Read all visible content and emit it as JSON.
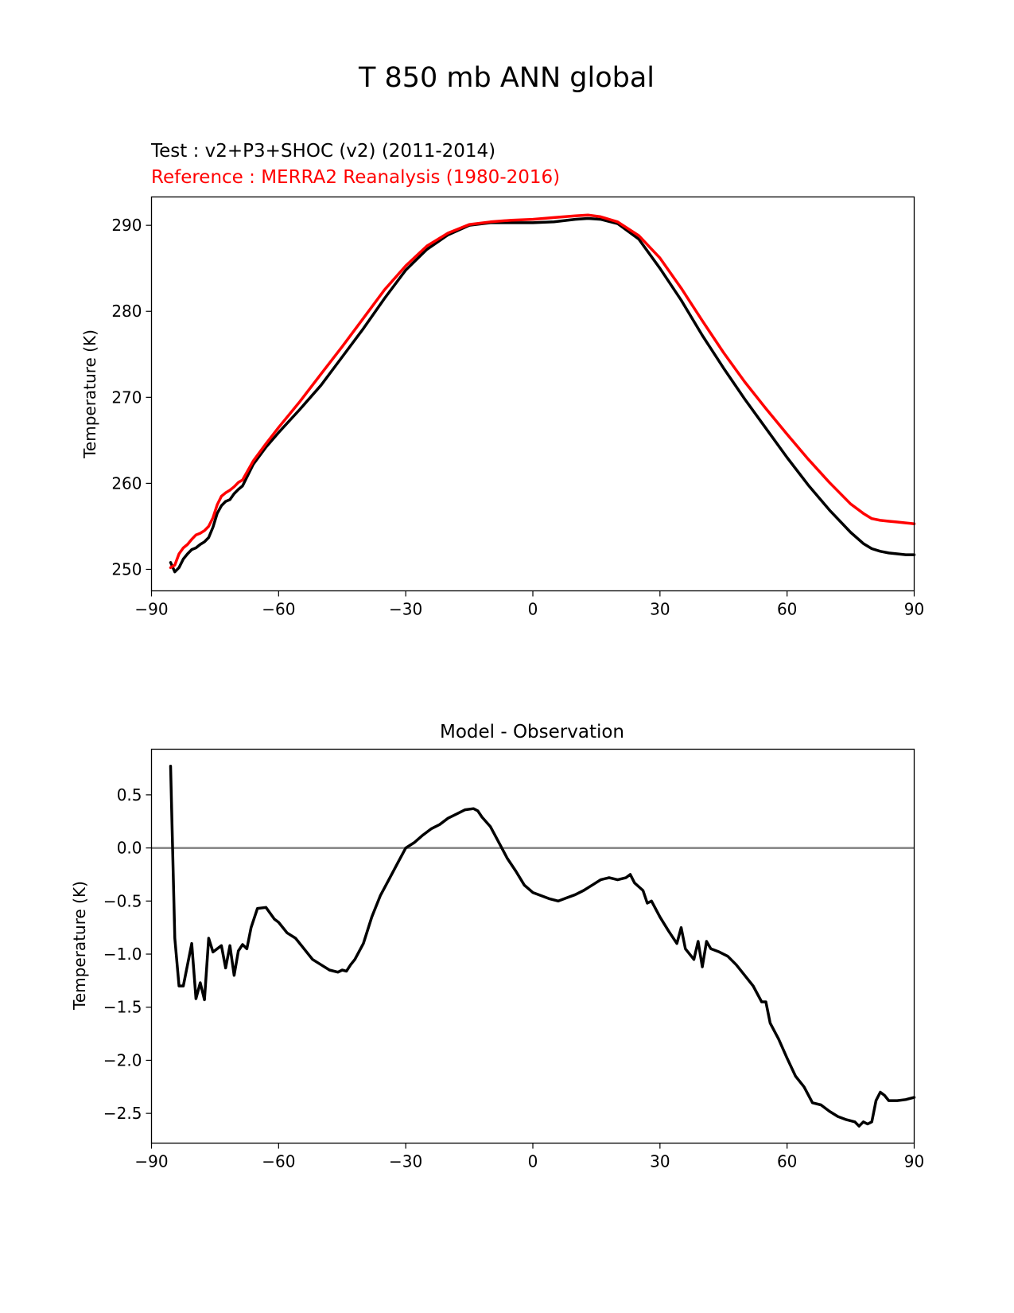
{
  "figure": {
    "title": "T 850 mb ANN global"
  },
  "colors": {
    "test": "#000000",
    "reference": "#ff0000",
    "zero_line": "#808080"
  },
  "chart_data": [
    {
      "type": "line",
      "test_label": "Test : v2+P3+SHOC (v2) (2011-2014)",
      "reference_label": "Reference : MERRA2 Reanalysis (1980-2016)",
      "xlabel": "",
      "ylabel": "Temperature (K)",
      "xlim": [
        -90,
        90
      ],
      "ylim": [
        247.5,
        293.3
      ],
      "xticks": [
        -90,
        -60,
        -30,
        0,
        30,
        60,
        90
      ],
      "xtick_labels": [
        "−90",
        "−60",
        "−30",
        "0",
        "30",
        "60",
        "90"
      ],
      "yticks": [
        250,
        260,
        270,
        280,
        290
      ],
      "ytick_labels": [
        "250",
        "260",
        "270",
        "280",
        "290"
      ],
      "series": [
        {
          "name": "Test",
          "color": "#000000",
          "x": [
            -85.5,
            -84.5,
            -83.5,
            -82.5,
            -81.5,
            -80.5,
            -79.5,
            -78.5,
            -77.5,
            -76.5,
            -75.5,
            -74.5,
            -73.5,
            -72.5,
            -71.5,
            -70.5,
            -69.5,
            -68.5,
            -66,
            -63,
            -60,
            -55,
            -50,
            -45,
            -40,
            -35,
            -30,
            -25,
            -20,
            -15,
            -10,
            -5,
            0,
            5,
            10,
            13,
            16,
            20,
            25,
            30,
            35,
            40,
            45,
            50,
            55,
            60,
            65,
            70,
            75,
            78,
            80,
            82,
            84,
            86,
            88,
            90
          ],
          "values": [
            250.8,
            249.7,
            250.2,
            251.2,
            251.8,
            252.3,
            252.5,
            252.9,
            253.2,
            253.7,
            254.9,
            256.5,
            257.4,
            257.9,
            258.1,
            258.8,
            259.3,
            259.7,
            262.2,
            264.2,
            265.9,
            268.6,
            271.4,
            274.7,
            278.0,
            281.5,
            284.8,
            287.2,
            288.9,
            290.0,
            290.3,
            290.3,
            290.3,
            290.4,
            290.7,
            290.8,
            290.7,
            290.2,
            288.4,
            285.0,
            281.3,
            277.2,
            273.4,
            269.8,
            266.4,
            263.0,
            259.8,
            256.9,
            254.3,
            253.0,
            252.4,
            252.1,
            251.9,
            251.8,
            251.7,
            251.7
          ]
        },
        {
          "name": "Reference",
          "color": "#ff0000",
          "x": [
            -85.5,
            -84.5,
            -83.5,
            -82.5,
            -81.5,
            -80.5,
            -79.5,
            -78.5,
            -77.5,
            -76.5,
            -75.5,
            -74.5,
            -73.5,
            -72.5,
            -71.5,
            -70.5,
            -69.5,
            -68.5,
            -66,
            -63,
            -60,
            -55,
            -50,
            -45,
            -40,
            -35,
            -30,
            -25,
            -20,
            -15,
            -10,
            -5,
            0,
            5,
            10,
            13,
            16,
            20,
            25,
            30,
            35,
            40,
            45,
            50,
            55,
            60,
            65,
            70,
            75,
            78,
            80,
            82,
            84,
            86,
            88,
            90
          ],
          "values": [
            250.2,
            250.5,
            251.8,
            252.5,
            252.9,
            253.5,
            254.0,
            254.2,
            254.5,
            255.0,
            256.0,
            257.5,
            258.5,
            258.9,
            259.2,
            259.6,
            260.1,
            260.4,
            262.6,
            264.6,
            266.5,
            269.5,
            272.7,
            275.9,
            279.2,
            282.5,
            285.3,
            287.6,
            289.1,
            290.1,
            290.4,
            290.6,
            290.7,
            290.9,
            291.1,
            291.2,
            291.0,
            290.4,
            288.8,
            286.2,
            282.7,
            278.9,
            275.2,
            271.8,
            268.7,
            265.7,
            262.8,
            260.1,
            257.6,
            256.5,
            255.9,
            255.7,
            255.6,
            255.5,
            255.4,
            255.3
          ]
        }
      ]
    },
    {
      "type": "line",
      "title": "Model - Observation",
      "xlabel": "",
      "ylabel": "Temperature (K)",
      "xlim": [
        -90,
        90
      ],
      "ylim": [
        -2.78,
        0.93
      ],
      "xticks": [
        -90,
        -60,
        -30,
        0,
        30,
        60,
        90
      ],
      "xtick_labels": [
        "−90",
        "−60",
        "−30",
        "0",
        "30",
        "60",
        "90"
      ],
      "yticks": [
        0.5,
        0.0,
        -0.5,
        -1.0,
        -1.5,
        -2.0,
        -2.5
      ],
      "ytick_labels": [
        "0.5",
        "0.0",
        "−0.5",
        "−1.0",
        "−1.5",
        "−2.0",
        "−2.5"
      ],
      "zero_line": 0,
      "series": [
        {
          "name": "Model - Observation",
          "color": "#000000",
          "x": [
            -85.5,
            -84.5,
            -83.5,
            -82.5,
            -81.5,
            -80.5,
            -79.5,
            -78.5,
            -77.5,
            -76.5,
            -75.5,
            -74.5,
            -73.5,
            -72.5,
            -71.5,
            -70.5,
            -69.5,
            -68.5,
            -67.5,
            -66.5,
            -65,
            -63,
            -61,
            -60,
            -58,
            -56,
            -54,
            -52,
            -50,
            -48,
            -46,
            -45,
            -44,
            -43,
            -42,
            -40,
            -38,
            -36,
            -34,
            -32,
            -30,
            -28,
            -26,
            -24,
            -22,
            -20,
            -18,
            -16,
            -14,
            -13,
            -12,
            -10,
            -8,
            -6,
            -4,
            -2,
            0,
            2,
            4,
            6,
            8,
            10,
            12,
            14,
            16,
            18,
            20,
            22,
            23,
            24,
            26,
            27,
            28,
            30,
            32,
            34,
            35,
            36,
            38,
            39,
            40,
            41,
            42,
            44,
            46,
            48,
            50,
            52,
            54,
            55,
            56,
            58,
            60,
            62,
            64,
            66,
            68,
            70,
            72,
            74,
            76,
            77,
            78,
            79,
            80,
            81,
            82,
            83,
            84,
            85,
            86,
            88,
            90
          ],
          "values": [
            0.77,
            -0.85,
            -1.3,
            -1.3,
            -1.1,
            -0.9,
            -1.42,
            -1.27,
            -1.43,
            -0.85,
            -0.98,
            -0.95,
            -0.92,
            -1.13,
            -0.92,
            -1.2,
            -0.97,
            -0.91,
            -0.95,
            -0.75,
            -0.57,
            -0.56,
            -0.67,
            -0.7,
            -0.8,
            -0.85,
            -0.95,
            -1.05,
            -1.1,
            -1.15,
            -1.17,
            -1.15,
            -1.16,
            -1.1,
            -1.05,
            -0.9,
            -0.65,
            -0.45,
            -0.3,
            -0.15,
            0.0,
            0.05,
            0.12,
            0.18,
            0.22,
            0.28,
            0.32,
            0.36,
            0.37,
            0.35,
            0.29,
            0.2,
            0.05,
            -0.1,
            -0.22,
            -0.35,
            -0.42,
            -0.45,
            -0.48,
            -0.5,
            -0.47,
            -0.44,
            -0.4,
            -0.35,
            -0.3,
            -0.28,
            -0.3,
            -0.28,
            -0.25,
            -0.33,
            -0.4,
            -0.52,
            -0.5,
            -0.65,
            -0.78,
            -0.9,
            -0.75,
            -0.95,
            -1.05,
            -0.88,
            -1.12,
            -0.88,
            -0.95,
            -0.98,
            -1.02,
            -1.1,
            -1.2,
            -1.3,
            -1.45,
            -1.45,
            -1.65,
            -1.8,
            -1.98,
            -2.15,
            -2.25,
            -2.4,
            -2.42,
            -2.48,
            -2.53,
            -2.56,
            -2.58,
            -2.62,
            -2.58,
            -2.6,
            -2.58,
            -2.38,
            -2.3,
            -2.33,
            -2.38,
            -2.38,
            -2.38,
            -2.37,
            -2.35
          ]
        }
      ]
    }
  ]
}
